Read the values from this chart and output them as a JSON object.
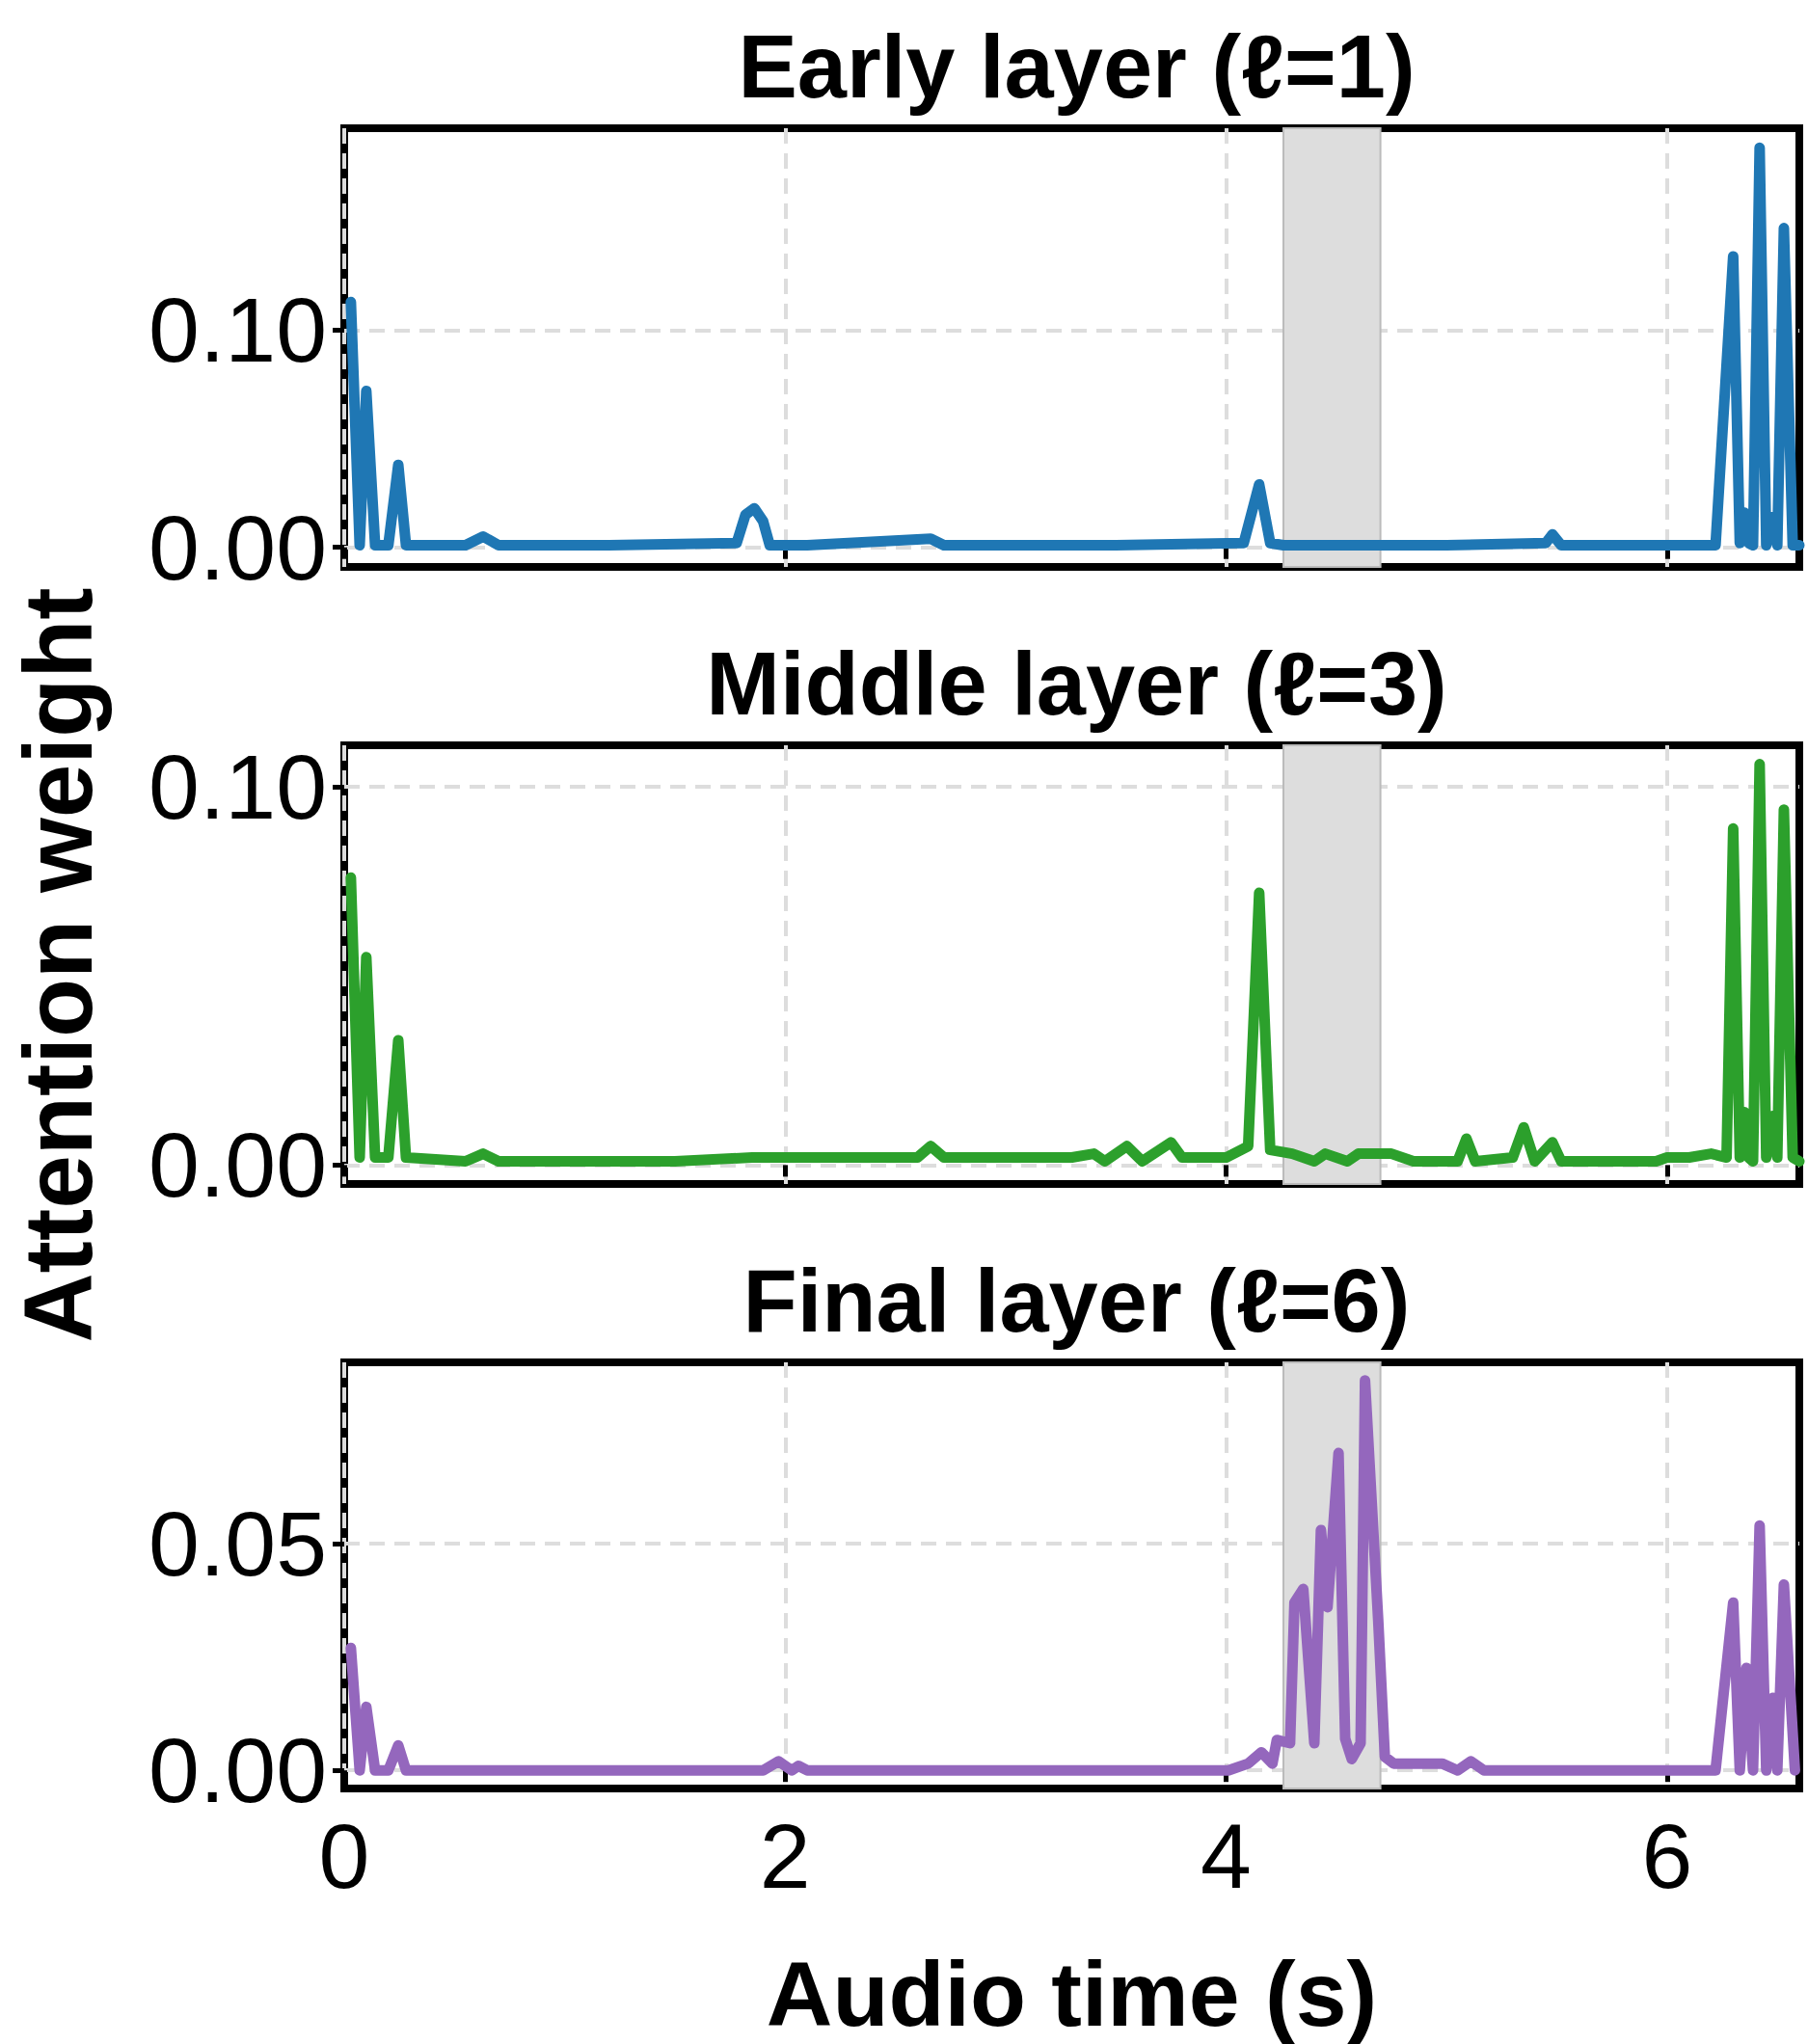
{
  "chart_data": [
    {
      "type": "line",
      "title": "Early layer (ℓ=1)",
      "xlim": [
        0,
        6.6
      ],
      "ylim": [
        -0.009,
        0.193
      ],
      "xticks": [
        0,
        2,
        4,
        6
      ],
      "yticks": [
        {
          "value": 0,
          "label": "0.00"
        },
        {
          "value": 0.1,
          "label": "0.10"
        }
      ],
      "grid": true,
      "tick_labels": "y",
      "line_style": "solid",
      "marker": "none",
      "bands": [
        {
          "axis": "x",
          "from": 4.26,
          "to": 4.7,
          "color": "#dddddd"
        }
      ],
      "series": [
        {
          "color": "#1f77b4",
          "x": [
            0.03,
            0.07,
            0.1,
            0.14,
            0.2,
            0.245,
            0.28,
            0.55,
            0.63,
            0.7,
            1.2,
            1.78,
            1.82,
            1.86,
            1.9,
            1.93,
            2.1,
            2.66,
            2.72,
            3.5,
            4.08,
            4.15,
            4.2,
            4.26,
            5.0,
            5.45,
            5.48,
            5.52,
            6.22,
            6.3,
            6.33,
            6.35,
            6.37,
            6.39,
            6.42,
            6.45,
            6.48,
            6.5,
            6.53,
            6.57,
            6.6
          ],
          "values": [
            0.113,
            0.001,
            0.072,
            0.001,
            0.001,
            0.038,
            0.001,
            0.001,
            0.005,
            0.001,
            0.001,
            0.002,
            0.015,
            0.018,
            0.012,
            0.001,
            0.001,
            0.004,
            0.001,
            0.001,
            0.002,
            0.029,
            0.002,
            0.001,
            0.001,
            0.002,
            0.006,
            0.001,
            0.001,
            0.134,
            0.002,
            0.016,
            0.002,
            0.001,
            0.184,
            0.001,
            0.014,
            0.001,
            0.147,
            0.001,
            0.001
          ]
        }
      ]
    },
    {
      "type": "line",
      "title": "Middle layer (ℓ=3)",
      "ylabel": "Attention weight",
      "xlim": [
        0,
        6.6
      ],
      "ylim": [
        -0.005,
        0.111
      ],
      "xticks": [
        0,
        2,
        4,
        6
      ],
      "yticks": [
        {
          "value": 0,
          "label": "0.00"
        },
        {
          "value": 0.1,
          "label": "0.10"
        }
      ],
      "grid": true,
      "tick_labels": "y",
      "line_style": "solid",
      "marker": "none",
      "bands": [
        {
          "axis": "x",
          "from": 4.26,
          "to": 4.7,
          "color": "#dddddd"
        }
      ],
      "series": [
        {
          "color": "#2ca02c",
          "x": [
            0.03,
            0.07,
            0.1,
            0.14,
            0.2,
            0.245,
            0.28,
            0.55,
            0.63,
            0.7,
            1.5,
            1.85,
            2.3,
            2.6,
            2.66,
            2.72,
            3.3,
            3.4,
            3.45,
            3.55,
            3.62,
            3.75,
            3.8,
            4.0,
            4.1,
            4.15,
            4.2,
            4.3,
            4.4,
            4.45,
            4.55,
            4.6,
            4.75,
            4.85,
            5.05,
            5.09,
            5.13,
            5.3,
            5.35,
            5.4,
            5.48,
            5.52,
            5.95,
            6.0,
            6.1,
            6.2,
            6.27,
            6.3,
            6.33,
            6.35,
            6.37,
            6.39,
            6.42,
            6.45,
            6.48,
            6.5,
            6.53,
            6.57,
            6.6
          ],
          "values": [
            0.076,
            0.002,
            0.055,
            0.002,
            0.002,
            0.033,
            0.002,
            0.001,
            0.003,
            0.001,
            0.001,
            0.002,
            0.002,
            0.002,
            0.005,
            0.002,
            0.002,
            0.003,
            0.001,
            0.005,
            0.001,
            0.006,
            0.002,
            0.002,
            0.005,
            0.072,
            0.004,
            0.003,
            0.001,
            0.003,
            0.001,
            0.003,
            0.003,
            0.001,
            0.001,
            0.007,
            0.001,
            0.002,
            0.01,
            0.001,
            0.006,
            0.001,
            0.001,
            0.002,
            0.002,
            0.003,
            0.002,
            0.089,
            0.002,
            0.014,
            0.002,
            0.001,
            0.106,
            0.002,
            0.013,
            0.002,
            0.094,
            0.002,
            0.001
          ]
        }
      ]
    },
    {
      "type": "line",
      "title": "Final layer (ℓ=6)",
      "xlabel": "Audio time (s)",
      "xlim": [
        0,
        6.6
      ],
      "ylim": [
        -0.004,
        0.09
      ],
      "xticks": [
        0,
        2,
        4,
        6
      ],
      "yticks": [
        {
          "value": 0,
          "label": "0.00"
        },
        {
          "value": 0.05,
          "label": "0.05"
        }
      ],
      "grid": true,
      "line_style": "solid",
      "marker": "none",
      "bands": [
        {
          "axis": "x",
          "from": 4.26,
          "to": 4.7,
          "color": "#dddddd"
        }
      ],
      "series": [
        {
          "color": "#9467bd",
          "x": [
            0.03,
            0.07,
            0.1,
            0.14,
            0.2,
            0.245,
            0.28,
            1.9,
            1.97,
            2.03,
            2.06,
            2.1,
            4.01,
            4.1,
            4.16,
            4.21,
            4.23,
            4.29,
            4.31,
            4.35,
            4.4,
            4.43,
            4.46,
            4.51,
            4.54,
            4.57,
            4.61,
            4.63,
            4.69,
            4.72,
            4.76,
            4.98,
            5.05,
            5.11,
            5.17,
            6.22,
            6.3,
            6.33,
            6.36,
            6.39,
            6.42,
            6.45,
            6.48,
            6.5,
            6.53,
            6.58
          ],
          "values": [
            0.027,
            0.0,
            0.014,
            0.0,
            0.0,
            0.0055,
            0.0,
            0.0,
            0.002,
            0.0,
            0.001,
            0.0,
            0.0,
            0.0015,
            0.004,
            0.0015,
            0.0067,
            0.006,
            0.037,
            0.04,
            0.006,
            0.053,
            0.036,
            0.07,
            0.007,
            0.0025,
            0.006,
            0.086,
            0.033,
            0.003,
            0.0015,
            0.0015,
            0.0,
            0.002,
            0.0,
            0.0,
            0.037,
            0.0,
            0.0226,
            0.0,
            0.054,
            0.0,
            0.016,
            0.0,
            0.041,
            0.0
          ]
        }
      ]
    }
  ]
}
